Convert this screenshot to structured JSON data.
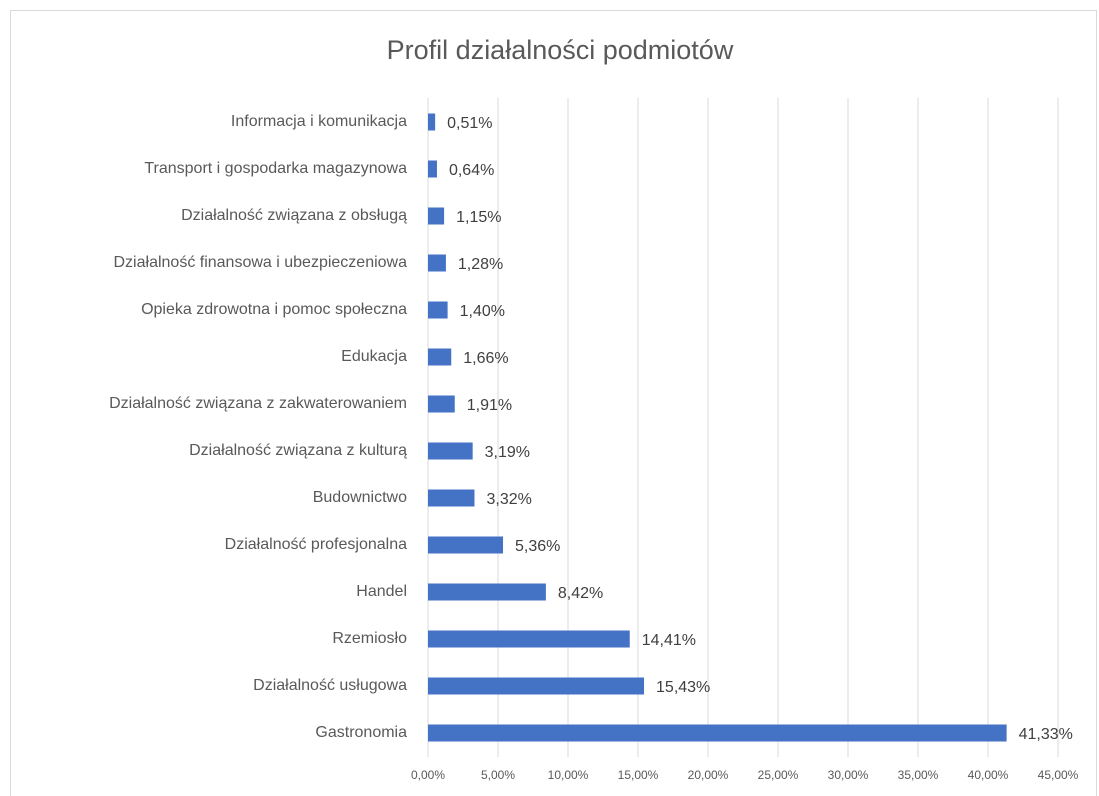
{
  "chart_data": {
    "type": "bar",
    "orientation": "horizontal",
    "title": "Profil działalności podmiotów",
    "categories": [
      "Informacja i komunikacja",
      "Transport i gospodarka magazynowa",
      "Działalność związana z obsługą",
      "Działalność finansowa i ubezpieczeniowa",
      "Opieka zdrowotna i pomoc społeczna",
      "Edukacja",
      "Działalność związana z zakwaterowaniem",
      "Działalność związana z kulturą",
      "Budownictwo",
      "Działalność profesjonalna",
      "Handel",
      "Rzemiosło",
      "Działalność usługowa",
      "Gastronomia"
    ],
    "values": [
      0.51,
      0.64,
      1.15,
      1.28,
      1.4,
      1.66,
      1.91,
      3.19,
      3.32,
      5.36,
      8.42,
      14.41,
      15.43,
      41.33
    ],
    "value_labels": [
      "0,51%",
      "0,64%",
      "1,15%",
      "1,28%",
      "1,40%",
      "1,66%",
      "1,91%",
      "3,19%",
      "3,32%",
      "5,36%",
      "8,42%",
      "14,41%",
      "15,43%",
      "41,33%"
    ],
    "color": "#4472c4",
    "xlim": [
      0,
      45
    ],
    "xticks": [
      {
        "value": 0,
        "label": "0,00%"
      },
      {
        "value": 5,
        "label": "5,00%"
      },
      {
        "value": 10,
        "label": "10,00%"
      },
      {
        "value": 15,
        "label": "15,00%"
      },
      {
        "value": 20,
        "label": "20,00%"
      },
      {
        "value": 25,
        "label": "25,00%"
      },
      {
        "value": 30,
        "label": "30,00%"
      },
      {
        "value": 35,
        "label": "35,00%"
      },
      {
        "value": 40,
        "label": "40,00%"
      },
      {
        "value": 45,
        "label": "45,00%"
      }
    ],
    "grid": true
  }
}
